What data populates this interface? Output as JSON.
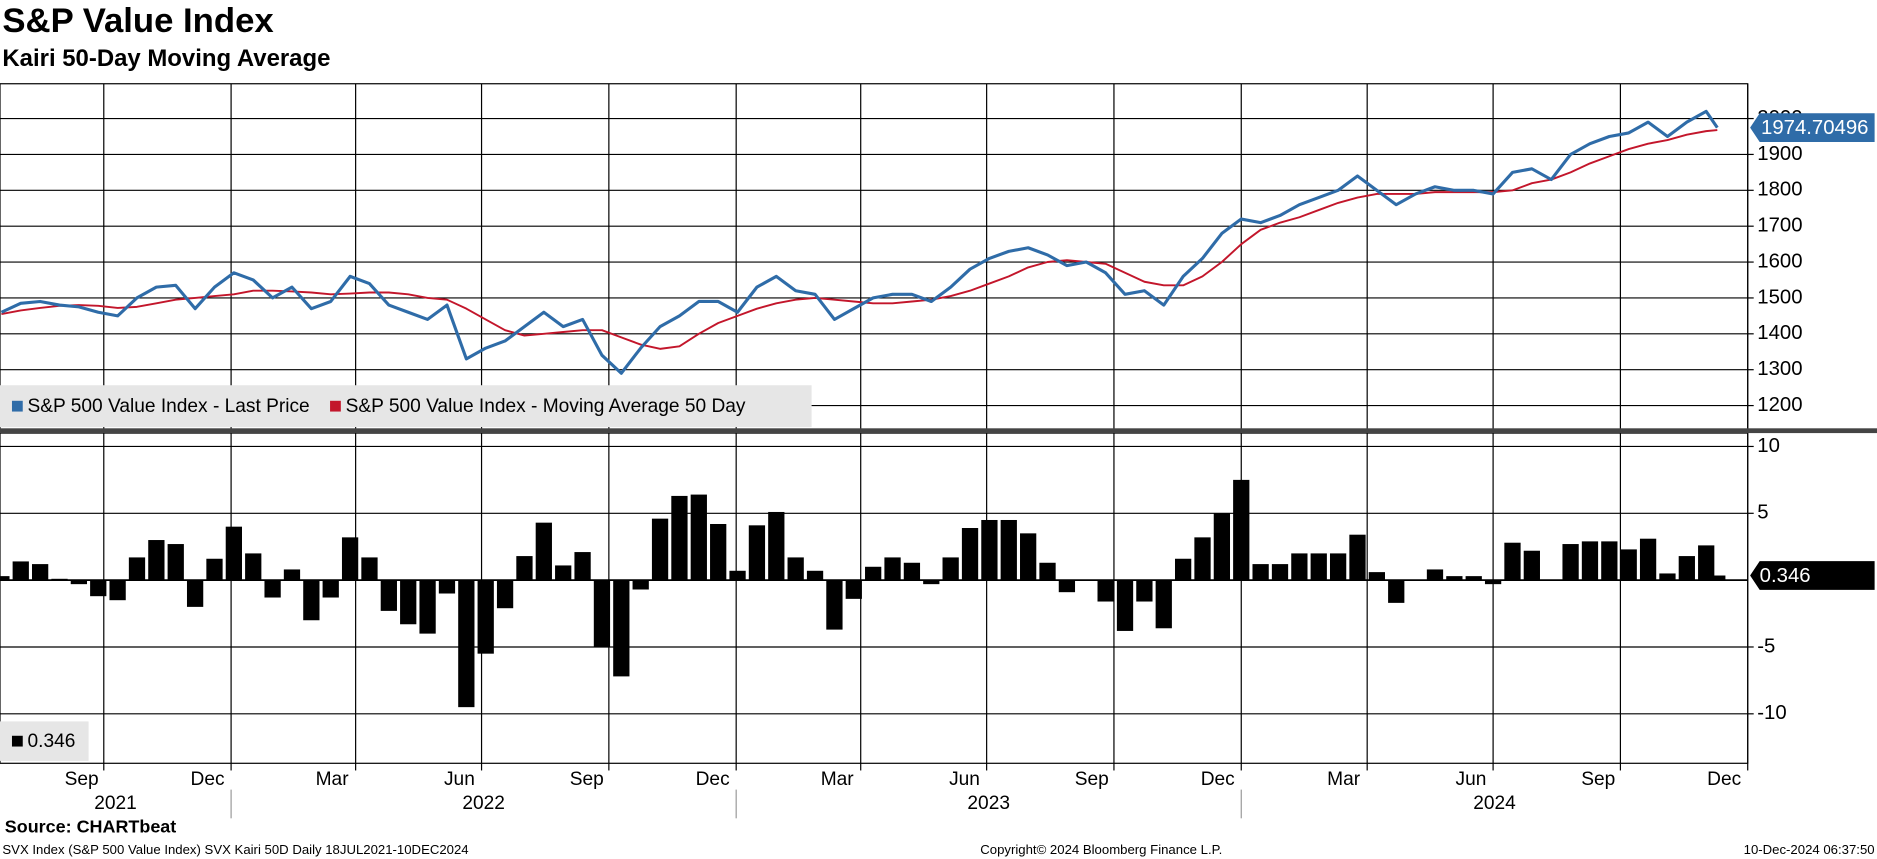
{
  "header": {
    "title": "S&P Value Index",
    "subtitle": "Kairi 50-Day Moving Average",
    "source": "Source: CHARTbeat",
    "footer_left": "SVX Index (S&P 500 Value Index) SVX Kairi 50D  Daily 18JUL2021-10DEC2024",
    "footer_center": "Copyright© 2024 Bloomberg Finance L.P.",
    "footer_right": "10-Dec-2024 06:37:50"
  },
  "chart_data": [
    {
      "type": "line",
      "xlim": [
        "2021-07-18",
        "2025-01-01"
      ],
      "ylim": [
        1130,
        2097
      ],
      "yticks": [
        1200,
        1300,
        1400,
        1500,
        1600,
        1700,
        1800,
        1900,
        2000
      ],
      "grid": true,
      "legend": "bottom-left",
      "x": [
        "2021-07-19",
        "2021-08-02",
        "2021-08-16",
        "2021-08-30",
        "2021-09-13",
        "2021-09-27",
        "2021-10-11",
        "2021-10-25",
        "2021-11-08",
        "2021-11-22",
        "2021-12-06",
        "2021-12-20",
        "2022-01-03",
        "2022-01-17",
        "2022-01-31",
        "2022-02-14",
        "2022-02-28",
        "2022-03-14",
        "2022-03-28",
        "2022-04-11",
        "2022-04-25",
        "2022-05-09",
        "2022-05-23",
        "2022-06-06",
        "2022-06-20",
        "2022-07-04",
        "2022-07-18",
        "2022-08-01",
        "2022-08-15",
        "2022-08-29",
        "2022-09-12",
        "2022-09-26",
        "2022-10-10",
        "2022-10-24",
        "2022-11-07",
        "2022-11-21",
        "2022-12-05",
        "2022-12-19",
        "2023-01-02",
        "2023-01-16",
        "2023-01-30",
        "2023-02-13",
        "2023-02-27",
        "2023-03-13",
        "2023-03-27",
        "2023-04-10",
        "2023-04-24",
        "2023-05-08",
        "2023-05-22",
        "2023-06-05",
        "2023-06-19",
        "2023-07-03",
        "2023-07-17",
        "2023-07-31",
        "2023-08-14",
        "2023-08-28",
        "2023-09-11",
        "2023-09-25",
        "2023-10-09",
        "2023-10-23",
        "2023-11-06",
        "2023-11-20",
        "2023-12-04",
        "2023-12-18",
        "2024-01-01",
        "2024-01-15",
        "2024-01-29",
        "2024-02-12",
        "2024-02-26",
        "2024-03-11",
        "2024-03-25",
        "2024-04-08",
        "2024-04-22",
        "2024-05-06",
        "2024-05-20",
        "2024-06-03",
        "2024-06-17",
        "2024-07-01",
        "2024-07-15",
        "2024-07-29",
        "2024-08-12",
        "2024-08-26",
        "2024-09-09",
        "2024-09-23",
        "2024-10-07",
        "2024-10-21",
        "2024-11-04",
        "2024-11-18",
        "2024-12-02",
        "2024-12-10"
      ],
      "series": [
        {
          "name": "S&P 500 Value Index - Last Price",
          "color": "#2f6ca8",
          "values": [
            1460,
            1485,
            1490,
            1480,
            1475,
            1460,
            1450,
            1500,
            1530,
            1535,
            1470,
            1530,
            1570,
            1550,
            1500,
            1530,
            1470,
            1490,
            1560,
            1540,
            1480,
            1460,
            1440,
            1480,
            1330,
            1360,
            1380,
            1420,
            1460,
            1420,
            1440,
            1340,
            1290,
            1360,
            1420,
            1450,
            1490,
            1490,
            1460,
            1530,
            1560,
            1520,
            1510,
            1440,
            1470,
            1500,
            1510,
            1510,
            1490,
            1530,
            1580,
            1610,
            1630,
            1640,
            1620,
            1590,
            1600,
            1570,
            1510,
            1520,
            1480,
            1560,
            1610,
            1680,
            1720,
            1710,
            1730,
            1760,
            1780,
            1800,
            1840,
            1800,
            1760,
            1790,
            1810,
            1800,
            1800,
            1790,
            1850,
            1860,
            1830,
            1900,
            1930,
            1950,
            1960,
            1990,
            1950,
            1990,
            2020,
            1974.70496
          ]
        },
        {
          "name": "S&P 500 Value Index - Moving Average 50 Day",
          "color": "#c3162b",
          "values": [
            1455,
            1465,
            1472,
            1478,
            1480,
            1478,
            1472,
            1475,
            1485,
            1495,
            1500,
            1505,
            1510,
            1520,
            1520,
            1518,
            1515,
            1510,
            1512,
            1515,
            1515,
            1510,
            1500,
            1495,
            1470,
            1440,
            1410,
            1395,
            1400,
            1405,
            1410,
            1410,
            1390,
            1370,
            1358,
            1365,
            1400,
            1430,
            1450,
            1470,
            1485,
            1495,
            1500,
            1495,
            1490,
            1485,
            1485,
            1490,
            1495,
            1505,
            1520,
            1540,
            1560,
            1585,
            1600,
            1605,
            1600,
            1595,
            1570,
            1545,
            1535,
            1535,
            1560,
            1600,
            1650,
            1690,
            1710,
            1725,
            1745,
            1765,
            1780,
            1790,
            1790,
            1790,
            1795,
            1795,
            1795,
            1795,
            1800,
            1820,
            1830,
            1850,
            1875,
            1895,
            1915,
            1930,
            1940,
            1955,
            1965,
            1968
          ]
        }
      ]
    },
    {
      "type": "bar",
      "color": "#000000",
      "xlim": [
        "2021-07-18",
        "2025-01-01"
      ],
      "ylim": [
        -13.7,
        11
      ],
      "yticks": [
        -10,
        -5,
        5,
        10
      ],
      "grid": true,
      "x": [
        "2021-07-19",
        "2021-08-02",
        "2021-08-16",
        "2021-08-30",
        "2021-09-13",
        "2021-09-27",
        "2021-10-11",
        "2021-10-25",
        "2021-11-08",
        "2021-11-22",
        "2021-12-06",
        "2021-12-20",
        "2022-01-03",
        "2022-01-17",
        "2022-01-31",
        "2022-02-14",
        "2022-02-28",
        "2022-03-14",
        "2022-03-28",
        "2022-04-11",
        "2022-04-25",
        "2022-05-09",
        "2022-05-23",
        "2022-06-06",
        "2022-06-20",
        "2022-07-04",
        "2022-07-18",
        "2022-08-01",
        "2022-08-15",
        "2022-08-29",
        "2022-09-12",
        "2022-09-26",
        "2022-10-10",
        "2022-10-24",
        "2022-11-07",
        "2022-11-21",
        "2022-12-05",
        "2022-12-19",
        "2023-01-02",
        "2023-01-16",
        "2023-01-30",
        "2023-02-13",
        "2023-02-27",
        "2023-03-13",
        "2023-03-27",
        "2023-04-10",
        "2023-04-24",
        "2023-05-08",
        "2023-05-22",
        "2023-06-05",
        "2023-06-19",
        "2023-07-03",
        "2023-07-17",
        "2023-07-31",
        "2023-08-14",
        "2023-08-28",
        "2023-09-11",
        "2023-09-25",
        "2023-10-09",
        "2023-10-23",
        "2023-11-06",
        "2023-11-20",
        "2023-12-04",
        "2023-12-18",
        "2024-01-01",
        "2024-01-15",
        "2024-01-29",
        "2024-02-12",
        "2024-02-26",
        "2024-03-11",
        "2024-03-25",
        "2024-04-08",
        "2024-04-22",
        "2024-05-06",
        "2024-05-20",
        "2024-06-03",
        "2024-06-17",
        "2024-07-01",
        "2024-07-15",
        "2024-07-29",
        "2024-08-12",
        "2024-08-26",
        "2024-09-09",
        "2024-09-23",
        "2024-10-07",
        "2024-10-21",
        "2024-11-04",
        "2024-11-18",
        "2024-12-02",
        "2024-12-10"
      ],
      "values": [
        0.3,
        1.4,
        1.2,
        0.1,
        -0.3,
        -1.2,
        -1.5,
        1.7,
        3.0,
        2.7,
        -2.0,
        1.6,
        4.0,
        2.0,
        -1.3,
        0.8,
        -3.0,
        -1.3,
        3.2,
        1.7,
        -2.3,
        -3.3,
        -4.0,
        -1.0,
        -9.5,
        -5.5,
        -2.1,
        1.8,
        4.3,
        1.1,
        2.1,
        -5.0,
        -7.2,
        -0.7,
        4.6,
        6.3,
        6.4,
        4.2,
        0.7,
        4.1,
        5.1,
        1.7,
        0.7,
        -3.7,
        -1.4,
        1.0,
        1.7,
        1.3,
        -0.3,
        1.7,
        3.9,
        4.5,
        4.5,
        3.5,
        1.3,
        -0.9,
        0.0,
        -1.6,
        -3.8,
        -1.6,
        -3.6,
        1.6,
        3.2,
        5.0,
        7.5,
        1.2,
        1.2,
        2.0,
        2.0,
        2.0,
        3.4,
        0.6,
        -1.7,
        0.0,
        0.8,
        0.3,
        0.3,
        -0.3,
        2.8,
        2.2,
        0.0,
        2.7,
        2.9,
        2.9,
        2.3,
        3.1,
        0.5,
        1.8,
        2.6,
        0.346
      ],
      "xticks": [
        {
          "value": "2021-09",
          "label": "Sep"
        },
        {
          "value": "2021-12",
          "label": "Dec"
        },
        {
          "value": "2022-03",
          "label": "Mar"
        },
        {
          "value": "2022-06",
          "label": "Jun"
        },
        {
          "value": "2022-09",
          "label": "Sep"
        },
        {
          "value": "2022-12",
          "label": "Dec"
        },
        {
          "value": "2023-03",
          "label": "Mar"
        },
        {
          "value": "2023-06",
          "label": "Jun"
        },
        {
          "value": "2023-09",
          "label": "Sep"
        },
        {
          "value": "2023-12",
          "label": "Dec"
        },
        {
          "value": "2024-03",
          "label": "Mar"
        },
        {
          "value": "2024-06",
          "label": "Jun"
        },
        {
          "value": "2024-09",
          "label": "Sep"
        },
        {
          "value": "2024-12",
          "label": "Dec"
        }
      ],
      "year_labels": [
        "2021",
        "2022",
        "2023",
        "2024"
      ]
    }
  ]
}
